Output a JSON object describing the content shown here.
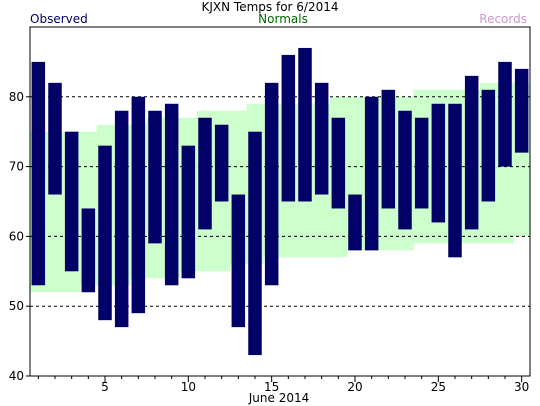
{
  "chart_data": {
    "type": "bar",
    "title": "KJXN Temps for 6/2014",
    "xlabel": "June 2014",
    "ylabel": "",
    "ylim": [
      40,
      90
    ],
    "y_ticks": [
      40,
      50,
      60,
      70,
      80
    ],
    "x_ticks": [
      5,
      10,
      15,
      20,
      25,
      30
    ],
    "grid": "horizontal dashed at 50, 60, 70, 80",
    "legend": [
      {
        "name": "Observed",
        "color": "#000066",
        "position": "top-left"
      },
      {
        "name": "Normals",
        "color": "#006600",
        "position": "top-center"
      },
      {
        "name": "Records",
        "color": "#cc99cc",
        "position": "top-right"
      }
    ],
    "observed": {
      "name": "Observed",
      "color": "#000066",
      "days": [
        1,
        2,
        3,
        4,
        5,
        6,
        7,
        8,
        9,
        10,
        11,
        12,
        13,
        14,
        15,
        16,
        17,
        18,
        19,
        20,
        21,
        22,
        23,
        24,
        25,
        26,
        27,
        28,
        29,
        30
      ],
      "high": [
        85,
        82,
        75,
        64,
        73,
        78,
        80,
        78,
        79,
        73,
        77,
        76,
        66,
        75,
        82,
        86,
        87,
        82,
        77,
        66,
        80,
        81,
        78,
        77,
        79,
        79,
        83,
        81,
        85,
        84
      ],
      "low": [
        53,
        66,
        55,
        52,
        48,
        47,
        49,
        59,
        53,
        54,
        61,
        65,
        47,
        43,
        53,
        65,
        65,
        66,
        64,
        58,
        58,
        64,
        61,
        64,
        62,
        57,
        61,
        65,
        70,
        72
      ]
    },
    "normals": {
      "name": "Normals",
      "color": "#ccffcc",
      "days": [
        1,
        2,
        3,
        4,
        5,
        6,
        7,
        8,
        9,
        10,
        11,
        12,
        13,
        14,
        15,
        16,
        17,
        18,
        19,
        20,
        21,
        22,
        23,
        24,
        25,
        26,
        27,
        28,
        29,
        30
      ],
      "high": [
        75,
        75,
        75,
        75,
        76,
        76,
        76,
        77,
        77,
        77,
        78,
        78,
        78,
        79,
        79,
        79,
        79,
        79,
        80,
        80,
        80,
        80,
        80,
        81,
        81,
        81,
        81,
        82,
        82,
        82
      ],
      "low": [
        52,
        52,
        52,
        53,
        53,
        53,
        54,
        54,
        54,
        55,
        55,
        55,
        56,
        56,
        57,
        57,
        57,
        57,
        57,
        58,
        58,
        58,
        58,
        59,
        59,
        59,
        59,
        59,
        59,
        60
      ]
    }
  }
}
